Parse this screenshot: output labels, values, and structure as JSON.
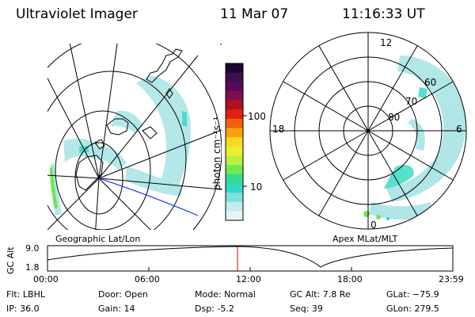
{
  "header": {
    "title": "Ultraviolet Imager",
    "date": "11 Mar 07",
    "time": "11:16:33 UT"
  },
  "colorbar": {
    "unit_label": "photon cm⁻²s⁻¹",
    "ticks": [
      "100",
      "10"
    ],
    "colors": [
      "#1a0830",
      "#3a1050",
      "#5a0860",
      "#80104a",
      "#b01020",
      "#e02010",
      "#f06010",
      "#f8a010",
      "#f8d820",
      "#e8f030",
      "#b8f040",
      "#70e850",
      "#38d890",
      "#30d8c8",
      "#80e0e0",
      "#c0ecec",
      "#e8f4f4"
    ]
  },
  "left_panel": {
    "label": "Geographic Lat/Lon"
  },
  "right_panel": {
    "label": "Apex  MLat/MLT",
    "mlt_labels": {
      "top": "12",
      "left": "18",
      "right": "6",
      "bottom": "0"
    },
    "lat_labels": [
      "60",
      "70",
      "80"
    ]
  },
  "timeline": {
    "y_title": "GC Alt",
    "y_max": "9.0",
    "y_min": "1.8",
    "x_ticks": [
      "00:00",
      "06:00",
      "12:00",
      "18:00",
      "23:59"
    ],
    "current_marker_time": "11:16",
    "marker_color": "#cc0000"
  },
  "status": {
    "flt": "Flt: LBHL",
    "ip": "IP: 36.0",
    "door": "Door: Open",
    "gain": "Gain: 14",
    "mode": "Mode: Normal",
    "dsp": "Dsp:    -5.2",
    "gcalt": "GC Alt: 7.8 Re",
    "seq": "Seq: 39",
    "glat": "GLat: −75.9",
    "glon": "GLon: 279.5"
  }
}
